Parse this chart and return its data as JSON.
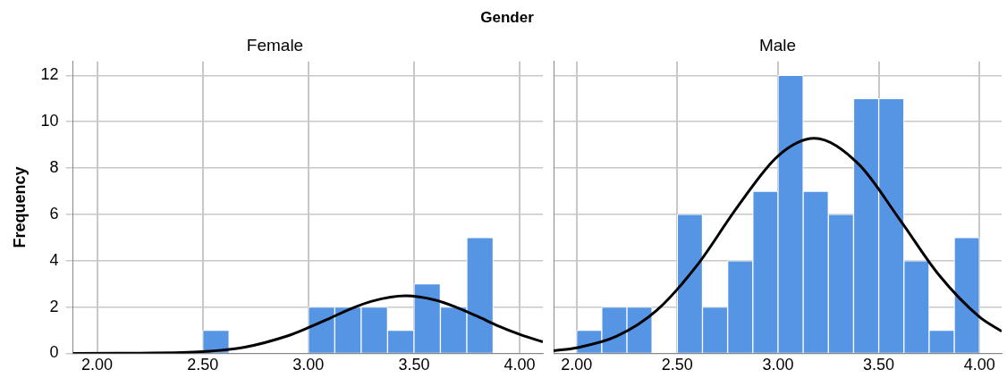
{
  "chart_data": [
    {
      "type": "histogram",
      "title": "Gender",
      "subtitle": "Female",
      "ylabel": "Frequency",
      "bins": [
        2.5,
        2.625,
        2.75,
        2.875,
        3.0,
        3.125,
        3.25,
        3.375,
        3.5,
        3.625,
        3.75,
        3.875
      ],
      "values": [
        1,
        0,
        0,
        0,
        2,
        2,
        2,
        1,
        3,
        2,
        5
      ],
      "color": "#5694e4",
      "series": [
        {
          "type": "line",
          "color": "#000000",
          "x": [
            1.886,
            2.2,
            2.5,
            2.7,
            2.9,
            3.0,
            3.1,
            3.2,
            3.3,
            3.46,
            3.6,
            3.7,
            3.8,
            3.9,
            4.0,
            4.11
          ],
          "values": [
            0,
            0.01,
            0.07,
            0.27,
            0.75,
            1.11,
            1.51,
            1.92,
            2.25,
            2.48,
            2.3,
            1.99,
            1.6,
            1.18,
            0.82,
            0.49
          ]
        }
      ],
      "xlim": [
        1.886,
        4.11
      ],
      "xticks": [
        {
          "value": 2,
          "label": "2.00"
        },
        {
          "value": 2.5,
          "label": "2.50"
        },
        {
          "value": 3,
          "label": "3.00"
        },
        {
          "value": 3.5,
          "label": "3.50"
        },
        {
          "value": 4,
          "label": "4.00"
        }
      ],
      "ylim": [
        0,
        12.6
      ],
      "yticks": [
        0,
        2,
        4,
        6,
        8,
        10,
        12
      ],
      "grid": true
    },
    {
      "type": "histogram",
      "subtitle": "Male",
      "bins": [
        2.0,
        2.125,
        2.25,
        2.375,
        2.5,
        2.625,
        2.75,
        2.875,
        3.0,
        3.125,
        3.25,
        3.375,
        3.5,
        3.625,
        3.75,
        3.875,
        4.0
      ],
      "values": [
        1,
        2,
        2,
        0,
        6,
        2,
        4,
        7,
        12,
        7,
        6,
        11,
        11,
        4,
        1,
        5
      ],
      "color": "#5694e4",
      "series": [
        {
          "type": "line",
          "color": "#000000",
          "x": [
            1.886,
            2.0,
            2.2,
            2.4,
            2.6,
            2.8,
            3.0,
            3.18,
            3.4,
            3.6,
            3.8,
            4.0,
            4.11
          ],
          "values": [
            0.11,
            0.24,
            0.74,
            1.87,
            3.82,
            6.34,
            8.52,
            9.28,
            8.17,
            5.83,
            3.37,
            1.57,
            0.95
          ]
        }
      ],
      "xlim": [
        1.886,
        4.11
      ],
      "xticks": [
        {
          "value": 2,
          "label": "2.00"
        },
        {
          "value": 2.5,
          "label": "2.50"
        },
        {
          "value": 3,
          "label": "3.00"
        },
        {
          "value": 3.5,
          "label": "3.50"
        },
        {
          "value": 4,
          "label": "4.00"
        }
      ],
      "ylim": [
        0,
        12.6
      ],
      "yticks": [
        0,
        2,
        4,
        6,
        8,
        10,
        12
      ],
      "grid": true,
      "tick_labels": "x"
    }
  ]
}
